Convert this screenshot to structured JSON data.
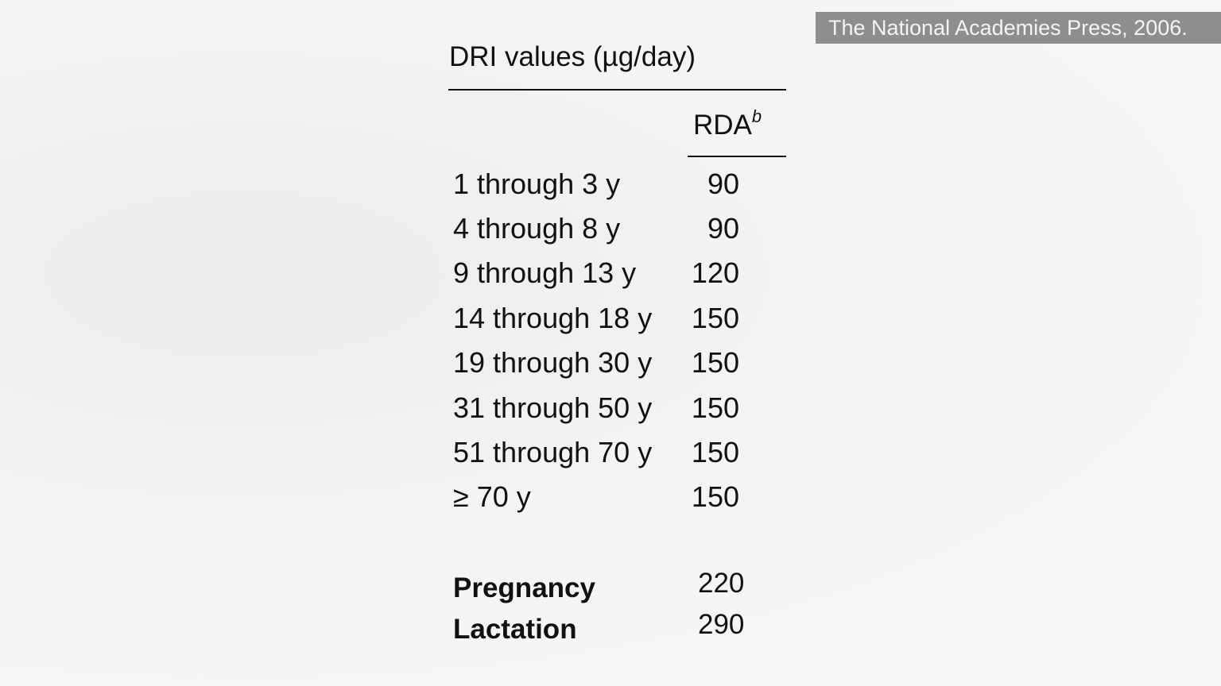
{
  "credit": "The National Academies Press, 2006.",
  "table": {
    "title": "DRI values (µg/day)",
    "column_header": "RDA",
    "column_header_sup": "b",
    "rows": [
      {
        "label": "1 through 3 y",
        "value": "90"
      },
      {
        "label": "4 through 8 y",
        "value": "90"
      },
      {
        "label": "9 through 13 y",
        "value": "120"
      },
      {
        "label": "14 through 18 y",
        "value": "150"
      },
      {
        "label": "19 through 30 y",
        "value": "150"
      },
      {
        "label": "31 through 50 y",
        "value": "150"
      },
      {
        "label": "51 through 70 y",
        "value": "150"
      },
      {
        "label": "≥ 70 y",
        "value": "150"
      }
    ],
    "special_rows": [
      {
        "label": "Pregnancy",
        "value": "220"
      },
      {
        "label": "Lactation",
        "value": "290"
      }
    ]
  }
}
